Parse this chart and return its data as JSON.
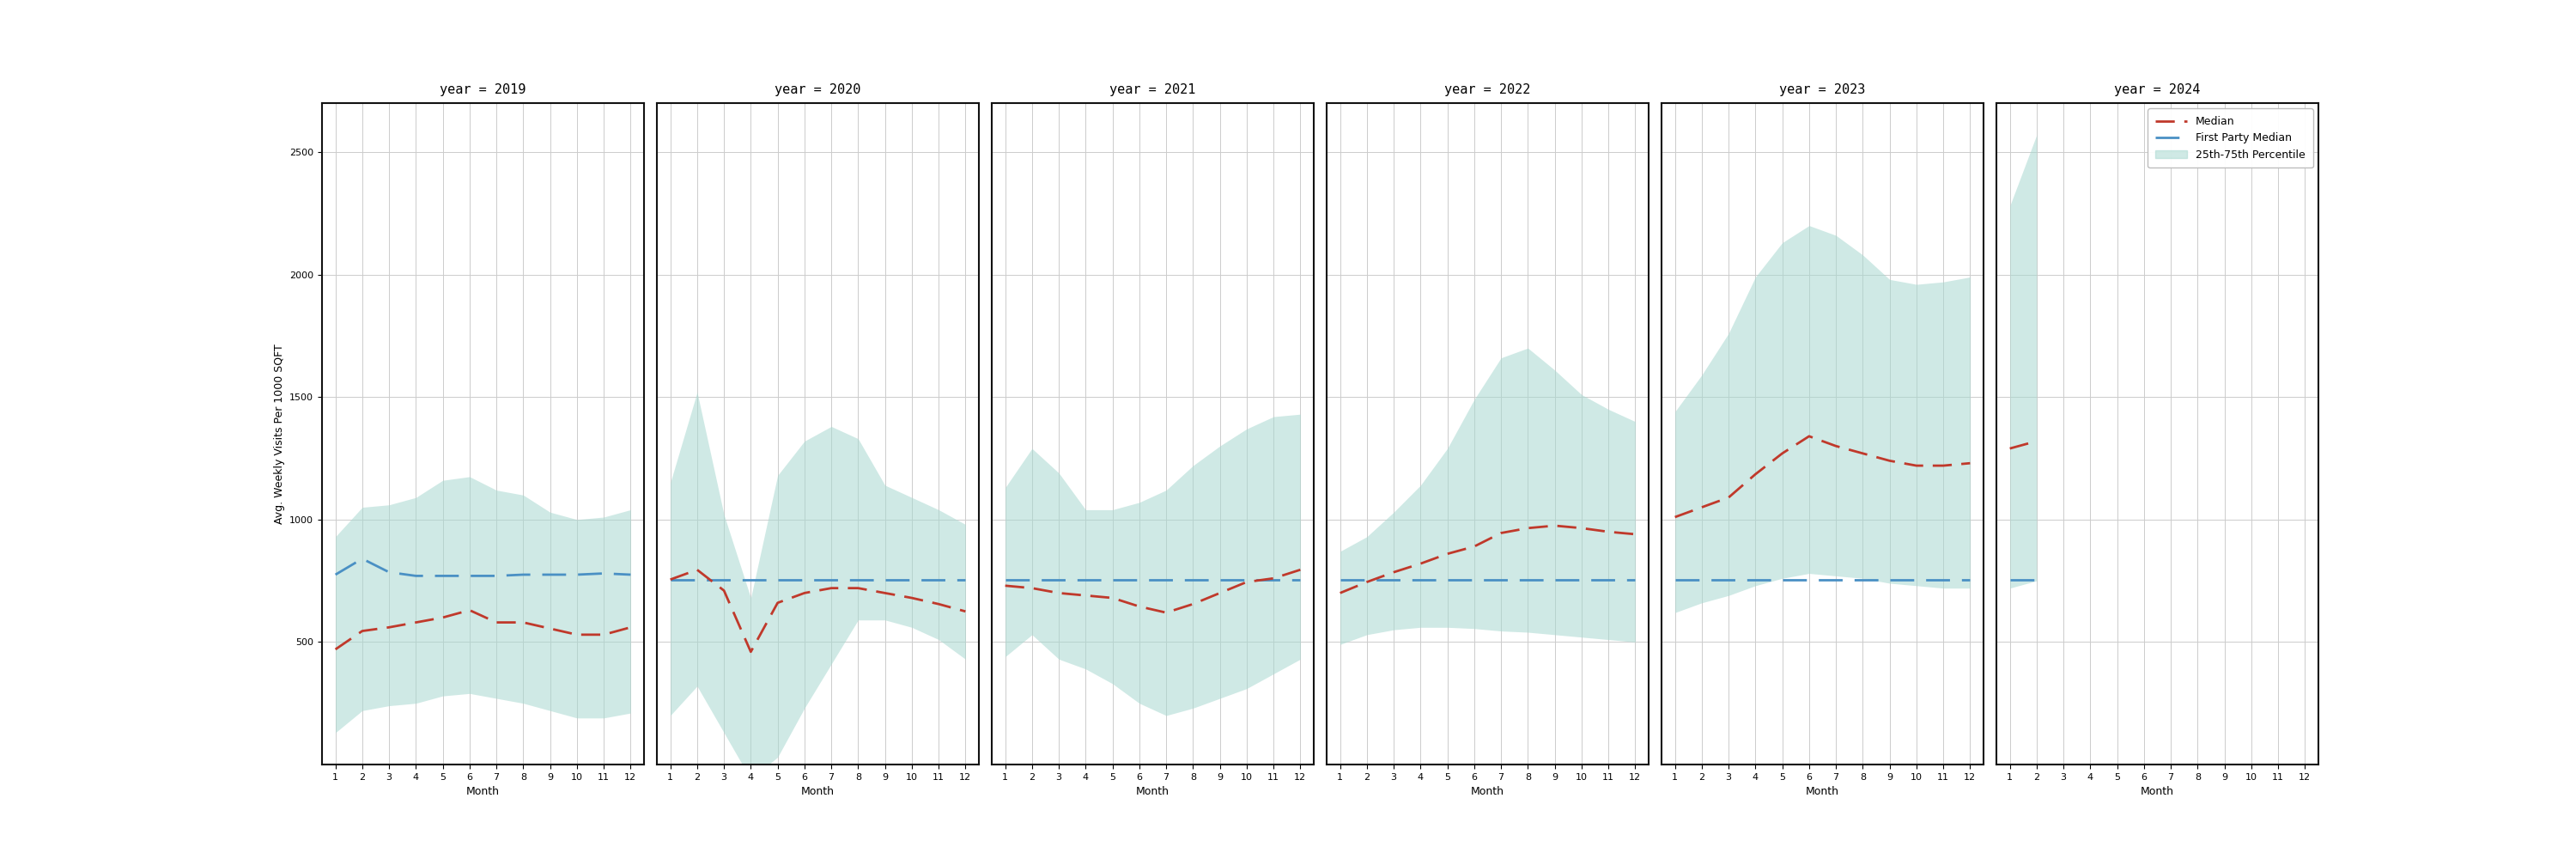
{
  "years": [
    2019,
    2020,
    2021,
    2022,
    2023,
    2024
  ],
  "ylabel": "Avg. Weekly Visits Per 1000 SQFT",
  "xlabel": "Month",
  "ylim": [
    0,
    2700
  ],
  "yticks": [
    500,
    1000,
    1500,
    2000,
    2500
  ],
  "median_color": "#c0392b",
  "first_party_color": "#4a90c4",
  "band_color": "#a8d8d0",
  "band_alpha": 0.55,
  "data": {
    "2019": {
      "months": [
        1,
        2,
        3,
        4,
        5,
        6,
        7,
        8,
        9,
        10,
        11,
        12
      ],
      "median": [
        470,
        545,
        560,
        580,
        600,
        630,
        580,
        580,
        555,
        530,
        530,
        560
      ],
      "fp_median": [
        775,
        840,
        785,
        770,
        770,
        770,
        770,
        775,
        775,
        775,
        780,
        775
      ],
      "p25": [
        130,
        220,
        240,
        250,
        280,
        290,
        270,
        250,
        220,
        190,
        190,
        210
      ],
      "p75": [
        930,
        1050,
        1060,
        1090,
        1160,
        1175,
        1120,
        1100,
        1030,
        1000,
        1010,
        1040
      ]
    },
    "2020": {
      "months": [
        1,
        2,
        3,
        4,
        5,
        6,
        7,
        8,
        9,
        10,
        11,
        12
      ],
      "median": [
        755,
        795,
        710,
        460,
        660,
        700,
        720,
        720,
        700,
        680,
        655,
        625
      ],
      "fp_median": [
        755,
        755,
        755,
        755,
        755,
        755,
        755,
        755,
        755,
        755,
        755,
        755
      ],
      "p25": [
        200,
        320,
        130,
        -60,
        30,
        230,
        410,
        590,
        590,
        560,
        510,
        430
      ],
      "p75": [
        1150,
        1520,
        1020,
        680,
        1180,
        1320,
        1380,
        1330,
        1140,
        1090,
        1040,
        980
      ]
    },
    "2021": {
      "months": [
        1,
        2,
        3,
        4,
        5,
        6,
        7,
        8,
        9,
        10,
        11,
        12
      ],
      "median": [
        730,
        720,
        700,
        690,
        680,
        645,
        620,
        655,
        700,
        745,
        760,
        795
      ],
      "fp_median": [
        755,
        755,
        755,
        755,
        755,
        755,
        755,
        755,
        755,
        755,
        755,
        755
      ],
      "p25": [
        440,
        530,
        430,
        390,
        330,
        250,
        200,
        230,
        270,
        310,
        370,
        430
      ],
      "p75": [
        1130,
        1290,
        1190,
        1040,
        1040,
        1070,
        1120,
        1220,
        1300,
        1370,
        1420,
        1430
      ]
    },
    "2022": {
      "months": [
        1,
        2,
        3,
        4,
        5,
        6,
        7,
        8,
        9,
        10,
        11,
        12
      ],
      "median": [
        700,
        745,
        785,
        820,
        860,
        890,
        945,
        965,
        975,
        965,
        950,
        940
      ],
      "fp_median": [
        755,
        755,
        755,
        755,
        755,
        755,
        755,
        755,
        755,
        755,
        755,
        755
      ],
      "p25": [
        490,
        530,
        550,
        560,
        560,
        555,
        545,
        540,
        530,
        520,
        510,
        500
      ],
      "p75": [
        870,
        930,
        1030,
        1140,
        1290,
        1490,
        1660,
        1700,
        1610,
        1510,
        1450,
        1400
      ]
    },
    "2023": {
      "months": [
        1,
        2,
        3,
        4,
        5,
        6,
        7,
        8,
        9,
        10,
        11,
        12
      ],
      "median": [
        1010,
        1050,
        1090,
        1185,
        1270,
        1340,
        1300,
        1270,
        1240,
        1220,
        1220,
        1230
      ],
      "fp_median": [
        755,
        755,
        755,
        755,
        755,
        755,
        755,
        755,
        755,
        755,
        755,
        755
      ],
      "p25": [
        620,
        660,
        690,
        730,
        760,
        780,
        770,
        760,
        740,
        730,
        720,
        720
      ],
      "p75": [
        1440,
        1590,
        1760,
        1990,
        2130,
        2200,
        2160,
        2080,
        1980,
        1960,
        1970,
        1990
      ]
    },
    "2024": {
      "months": [
        1,
        2
      ],
      "median": [
        1290,
        1320
      ],
      "fp_median": [
        755,
        755
      ],
      "p25": [
        720,
        750
      ],
      "p75": [
        2280,
        2570
      ]
    }
  },
  "legend_labels": [
    "Median",
    "First Party Median",
    "25th-75th Percentile"
  ],
  "title_fontsize": 11,
  "axis_fontsize": 9,
  "tick_fontsize": 8
}
